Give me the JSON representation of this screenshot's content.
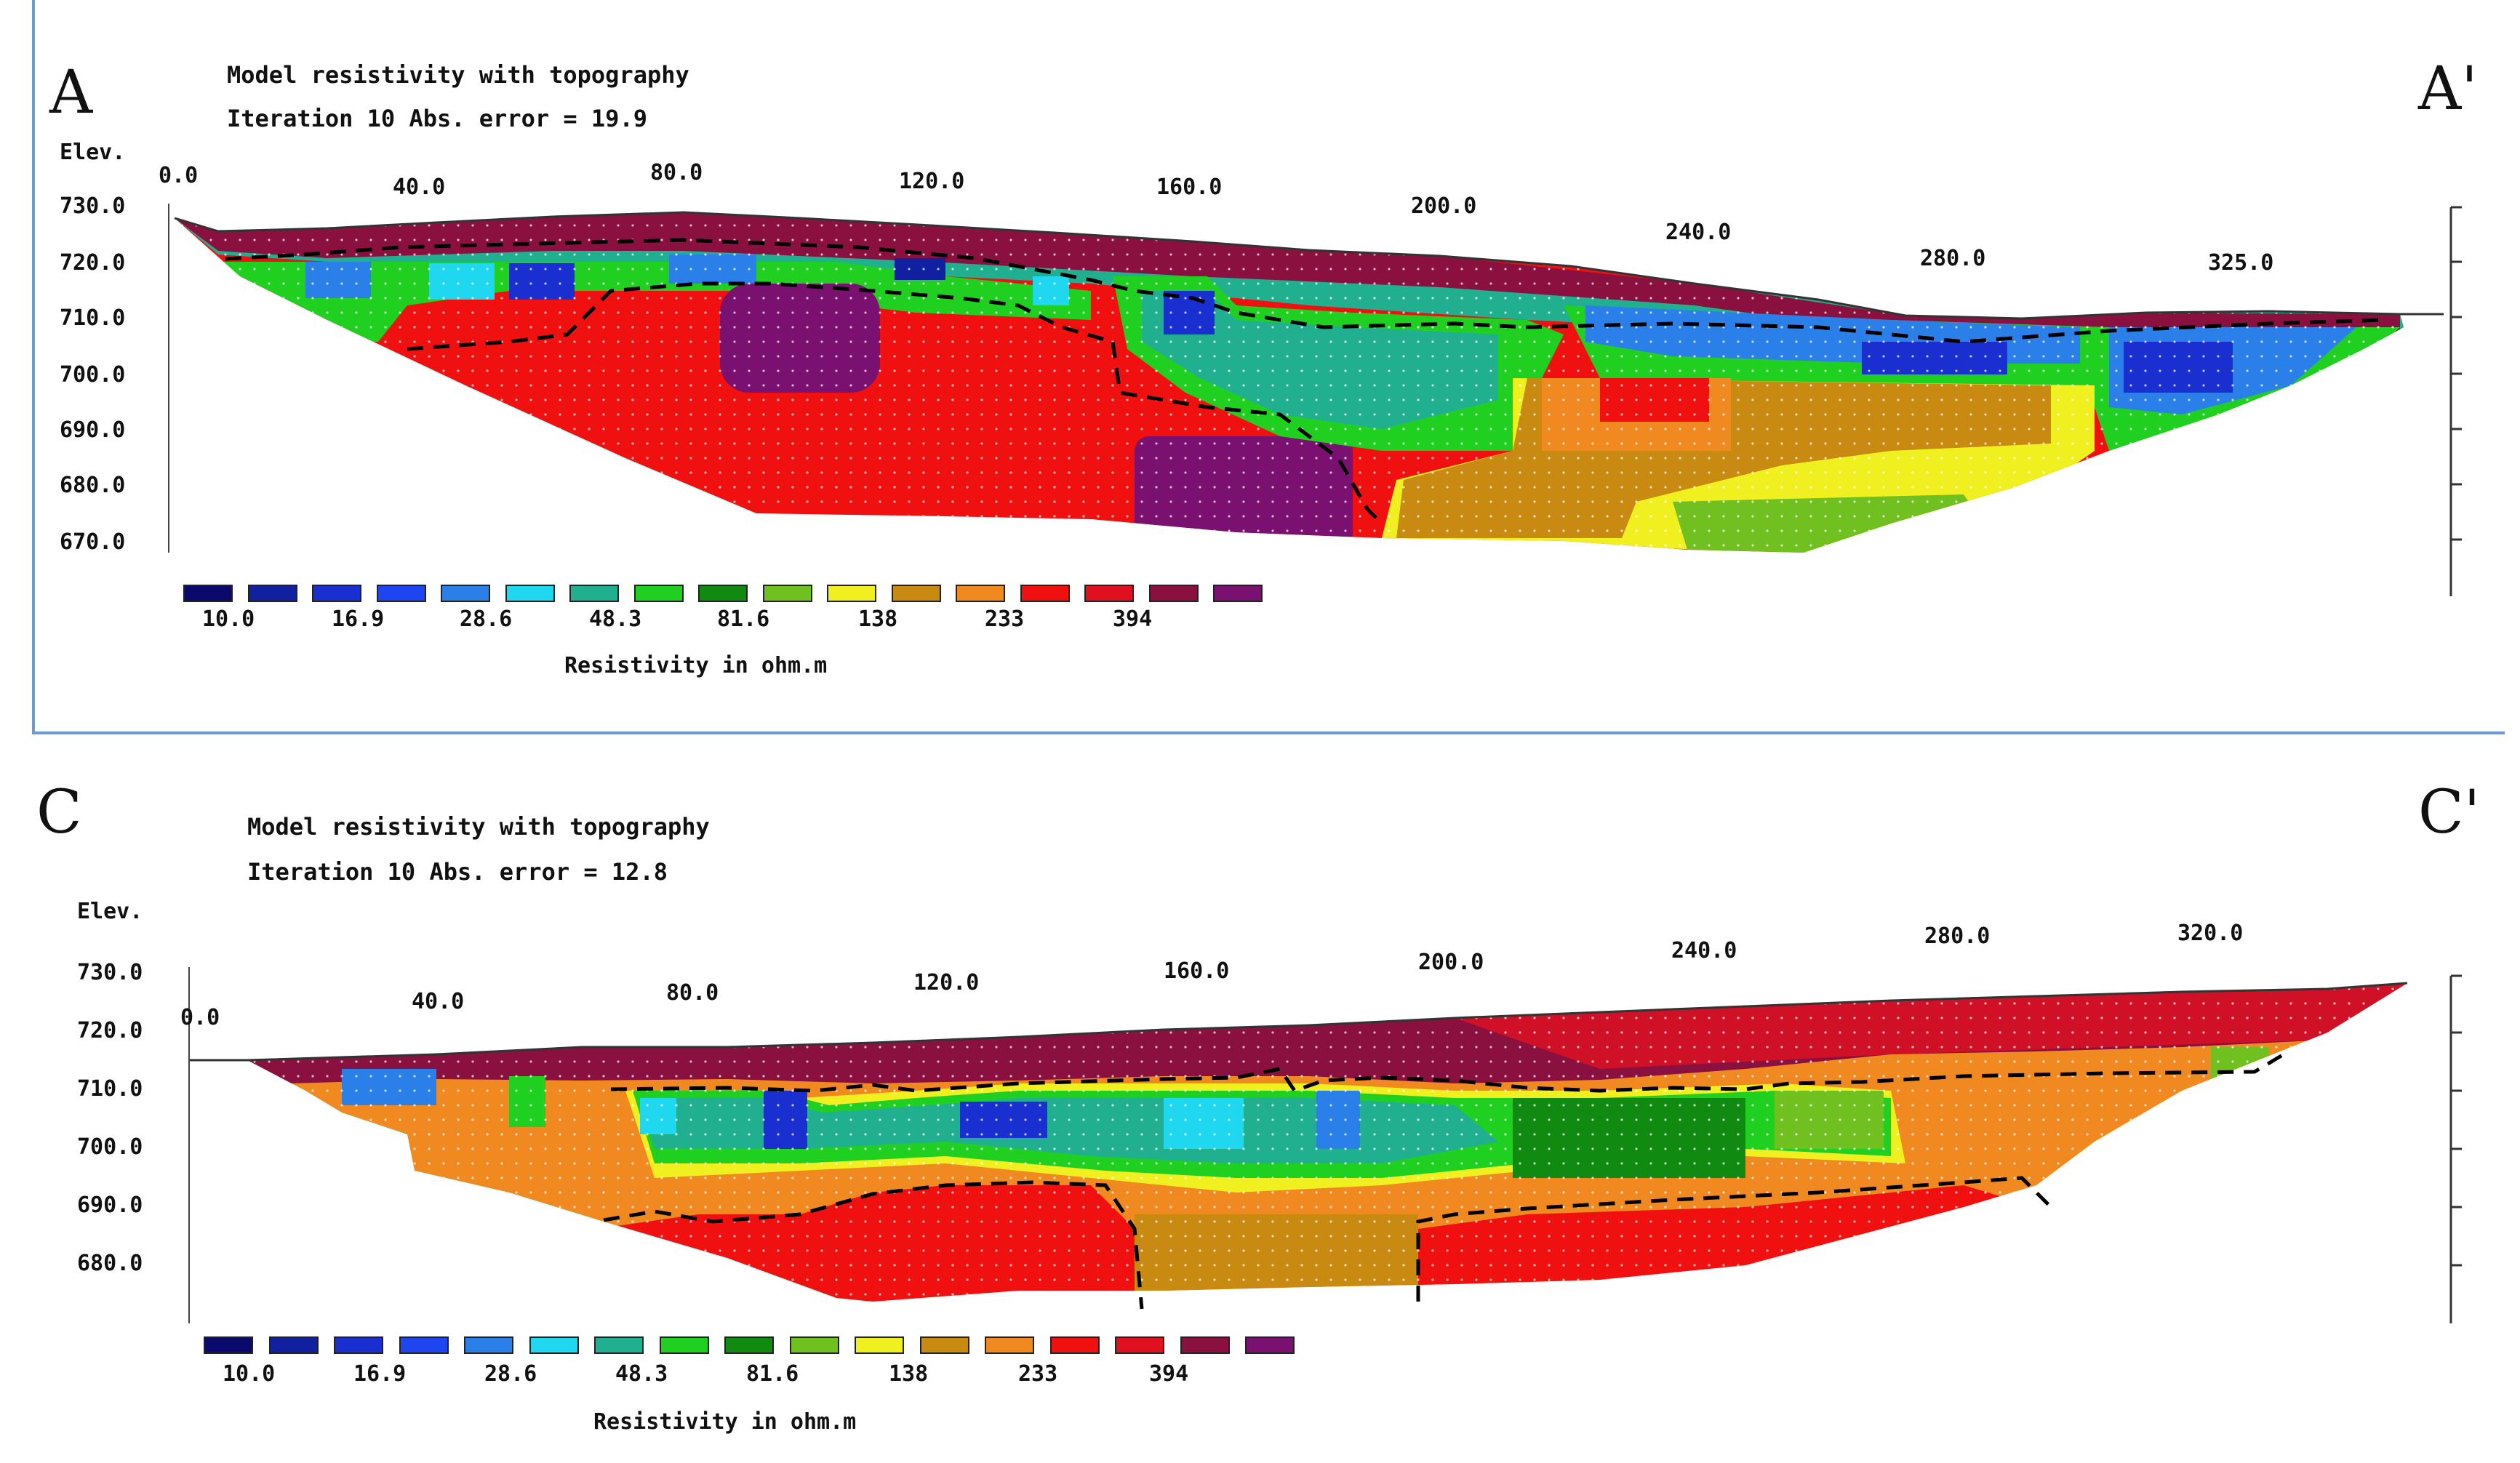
{
  "chart_data": [
    {
      "type": "heatmap",
      "section_start": "A",
      "section_end": "A'",
      "title": "Model resistivity with topography",
      "subtitle": "Iteration 10 Abs. error = 19.9",
      "ylabel": "Elev.",
      "x_ticks": [
        "0.0",
        "40.0",
        "80.0",
        "120.0",
        "160.0",
        "200.0",
        "240.0",
        "280.0",
        "325.0"
      ],
      "y_ticks": [
        "730.0",
        "720.0",
        "710.0",
        "700.0",
        "690.0",
        "680.0",
        "670.0"
      ],
      "ylim": [
        660,
        730
      ],
      "colorbar_label": "Resistivity in ohm.m",
      "colorbar_ticks": [
        "10.0",
        "16.9",
        "28.6",
        "48.3",
        "81.6",
        "138",
        "233",
        "394"
      ]
    },
    {
      "type": "heatmap",
      "section_start": "C",
      "section_end": "C'",
      "title": "Model resistivity with topography",
      "subtitle": "Iteration 10 Abs. error = 12.8",
      "ylabel": "Elev.",
      "x_ticks": [
        "0.0",
        "40.0",
        "80.0",
        "120.0",
        "160.0",
        "200.0",
        "240.0",
        "280.0",
        "320.0"
      ],
      "y_ticks": [
        "730.0",
        "720.0",
        "710.0",
        "700.0",
        "690.0",
        "680.0"
      ],
      "ylim": [
        670,
        730
      ],
      "colorbar_label": "Resistivity in ohm.m",
      "colorbar_ticks": [
        "10.0",
        "16.9",
        "28.6",
        "48.3",
        "81.6",
        "138",
        "233",
        "394"
      ]
    }
  ],
  "palette": [
    "#0a0a6e",
    "#1020a0",
    "#1a2fd0",
    "#1f45f0",
    "#2a7fe8",
    "#1fd8f0",
    "#20b090",
    "#20d020",
    "#108a10",
    "#70c020",
    "#f0f020",
    "#c88a10",
    "#f08a20",
    "#f01010",
    "#e01020",
    "#8a1040",
    "#7a1070"
  ]
}
